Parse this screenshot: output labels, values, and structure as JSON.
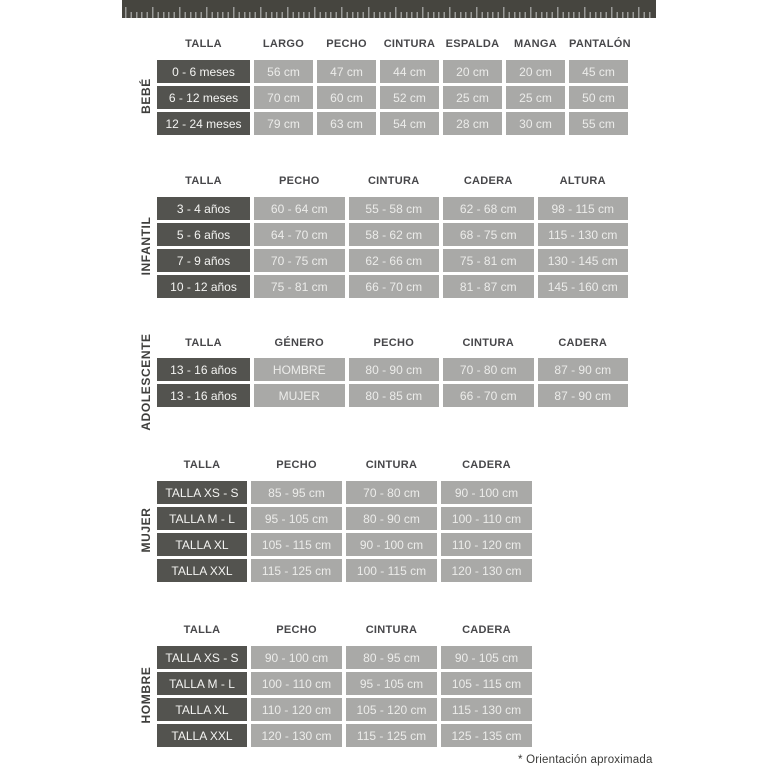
{
  "footnote": "* Orientación aproximada",
  "colors": {
    "ruler_band": "#46453f",
    "ruler_ticks": "#9a9a98",
    "dark_cell": "#53534f",
    "light_cell": "#a9a9a7",
    "header_text": "#47474a",
    "cell_text": "#ececea"
  },
  "tables": [
    {
      "group": "BEBÉ",
      "columns": [
        "TALLA",
        "LARGO",
        "PECHO",
        "CINTURA",
        "ESPALDA",
        "MANGA",
        "PANTALÓN"
      ],
      "rows": [
        {
          "label": "0 - 6 meses",
          "values": [
            "56 cm",
            "47 cm",
            "44 cm",
            "20 cm",
            "20 cm",
            "45 cm"
          ]
        },
        {
          "label": "6 - 12 meses",
          "values": [
            "70 cm",
            "60 cm",
            "52 cm",
            "25 cm",
            "25 cm",
            "50 cm"
          ]
        },
        {
          "label": "12 - 24 meses",
          "values": [
            "79 cm",
            "63 cm",
            "54 cm",
            "28 cm",
            "30 cm",
            "55 cm"
          ]
        }
      ]
    },
    {
      "group": "INFANTIL",
      "columns": [
        "TALLA",
        "PECHO",
        "CINTURA",
        "CADERA",
        "ALTURA"
      ],
      "rows": [
        {
          "label": "3 - 4 años",
          "values": [
            "60 - 64 cm",
            "55 - 58 cm",
            "62 - 68 cm",
            "98 - 115 cm"
          ]
        },
        {
          "label": "5 - 6 años",
          "values": [
            "64 - 70 cm",
            "58 - 62 cm",
            "68 - 75 cm",
            "115 - 130 cm"
          ]
        },
        {
          "label": "7 - 9 años",
          "values": [
            "70 - 75 cm",
            "62 - 66 cm",
            "75 - 81 cm",
            "130 - 145 cm"
          ]
        },
        {
          "label": "10 - 12 años",
          "values": [
            "75 - 81 cm",
            "66 - 70 cm",
            "81 - 87 cm",
            "145 - 160 cm"
          ]
        }
      ]
    },
    {
      "group": "ADOLESCENTE",
      "columns": [
        "TALLA",
        "GÉNERO",
        "PECHO",
        "CINTURA",
        "CADERA"
      ],
      "rows": [
        {
          "label": "13 - 16 años",
          "values": [
            "HOMBRE",
            "80 - 90 cm",
            "70 - 80 cm",
            "87 - 90 cm"
          ]
        },
        {
          "label": "13 - 16 años",
          "values": [
            "MUJER",
            "80 - 85 cm",
            "66 - 70 cm",
            "87 - 90 cm"
          ]
        }
      ]
    },
    {
      "group": "MUJER",
      "columns": [
        "TALLA",
        "PECHO",
        "CINTURA",
        "CADERA"
      ],
      "rows": [
        {
          "label": "TALLA XS - S",
          "values": [
            "85 - 95 cm",
            "70 - 80 cm",
            "90 - 100 cm"
          ]
        },
        {
          "label": "TALLA M - L",
          "values": [
            "95 - 105 cm",
            "80 - 90 cm",
            "100 - 110 cm"
          ]
        },
        {
          "label": "TALLA XL",
          "values": [
            "105 - 115 cm",
            "90 - 100 cm",
            "110 - 120 cm"
          ]
        },
        {
          "label": "TALLA XXL",
          "values": [
            "115 - 125 cm",
            "100 - 115 cm",
            "120 - 130 cm"
          ]
        }
      ]
    },
    {
      "group": "HOMBRE",
      "columns": [
        "TALLA",
        "PECHO",
        "CINTURA",
        "CADERA"
      ],
      "rows": [
        {
          "label": "TALLA XS - S",
          "values": [
            "90 - 100 cm",
            "80 - 95 cm",
            "90 - 105 cm"
          ]
        },
        {
          "label": "TALLA M - L",
          "values": [
            "100 - 110 cm",
            "95 - 105 cm",
            "105 - 115 cm"
          ]
        },
        {
          "label": "TALLA XL",
          "values": [
            "110 - 120 cm",
            "105 - 120 cm",
            "115 - 130 cm"
          ]
        },
        {
          "label": "TALLA XXL",
          "values": [
            "120 - 130 cm",
            "115 - 125 cm",
            "125 - 135 cm"
          ]
        }
      ]
    }
  ]
}
